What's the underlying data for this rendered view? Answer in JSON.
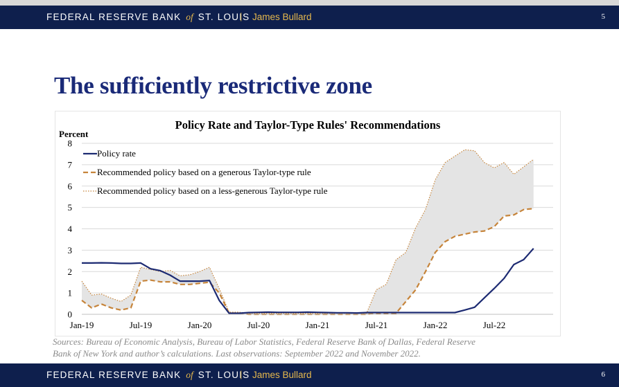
{
  "header": {
    "bank_part1": "FEDERAL RESERVE BANK",
    "bank_of": "of",
    "bank_part2": "ST. LOUIS",
    "separator": "|",
    "author": "James Bullard",
    "page_top": "5",
    "page_bottom": "6"
  },
  "slide": {
    "title": "The sufficiently restrictive zone"
  },
  "colors": {
    "banner": "#0e1f4d",
    "title": "#1a2a78",
    "policy_rate": "#1c2a72",
    "generous": "#c6843a",
    "less_generous": "#c6843a",
    "zone_fill": "#e4e4e4",
    "gold": "#e6b84d"
  },
  "chart_data": {
    "type": "line",
    "title": "Policy Rate and Taylor-Type Rules' Recommendations",
    "ylabel": "Percent",
    "xlabel": "",
    "ylim": [
      0,
      8
    ],
    "y_ticks": [
      "0",
      "1",
      "2",
      "3",
      "4",
      "5",
      "6",
      "7",
      "8"
    ],
    "x_ticks": [
      "Jan-19",
      "Jul-19",
      "Jan-20",
      "Jul-20",
      "Jan-21",
      "Jul-21",
      "Jan-22",
      "Jul-22"
    ],
    "x_start": "Jan-19",
    "x_end": "Nov-22",
    "legend_position": "top-left",
    "series": [
      {
        "name": "Policy rate",
        "style": "solid",
        "x": [
          0,
          1,
          2,
          3,
          4,
          5,
          6,
          7,
          8,
          9,
          10,
          11,
          12,
          13,
          14,
          15,
          16,
          17,
          18,
          19,
          20,
          21,
          22,
          23,
          24,
          25,
          26,
          27,
          28,
          29,
          30,
          31,
          32,
          33,
          34,
          35,
          36,
          37,
          38,
          39,
          40,
          41,
          42,
          43,
          44,
          45,
          46
        ],
        "values": [
          2.4,
          2.4,
          2.41,
          2.4,
          2.38,
          2.38,
          2.4,
          2.13,
          2.04,
          1.83,
          1.55,
          1.55,
          1.55,
          1.58,
          0.65,
          0.05,
          0.05,
          0.08,
          0.09,
          0.1,
          0.09,
          0.09,
          0.09,
          0.1,
          0.09,
          0.08,
          0.07,
          0.07,
          0.06,
          0.08,
          0.08,
          0.08,
          0.08,
          0.08,
          0.08,
          0.08,
          0.08,
          0.08,
          0.08,
          0.2,
          0.33,
          0.77,
          1.21,
          1.68,
          2.33,
          2.56,
          3.08
        ]
      },
      {
        "name": "Recommended policy based on a generous Taylor-type rule",
        "style": "dashed",
        "x": [
          0,
          1,
          2,
          3,
          4,
          5,
          6,
          7,
          8,
          9,
          10,
          11,
          12,
          13,
          14,
          15,
          16,
          17,
          18,
          19,
          20,
          21,
          22,
          23,
          24,
          25,
          26,
          27,
          28,
          29,
          30,
          31,
          32,
          33,
          34,
          35,
          36,
          37,
          38,
          39,
          40,
          41,
          42,
          43,
          44,
          45,
          46
        ],
        "values": [
          0.65,
          0.3,
          0.48,
          0.3,
          0.2,
          0.3,
          1.55,
          1.6,
          1.52,
          1.52,
          1.4,
          1.4,
          1.45,
          1.5,
          1.0,
          0.05,
          0.05,
          0.0,
          0.0,
          0.0,
          0.0,
          0.0,
          0.0,
          0.0,
          0.0,
          0.0,
          0.0,
          0.0,
          0.0,
          0.0,
          0.05,
          0.05,
          0.05,
          0.6,
          1.15,
          2.0,
          2.9,
          3.4,
          3.65,
          3.75,
          3.85,
          3.9,
          4.1,
          4.6,
          4.65,
          4.9,
          4.95
        ]
      },
      {
        "name": "Recommended policy based on a less-generous Taylor-type rule",
        "style": "dotted",
        "x": [
          0,
          1,
          2,
          3,
          4,
          5,
          6,
          7,
          8,
          9,
          10,
          11,
          12,
          13,
          14,
          15,
          16,
          17,
          18,
          19,
          20,
          21,
          22,
          23,
          24,
          25,
          26,
          27,
          28,
          29,
          30,
          31,
          32,
          33,
          34,
          35,
          36,
          37,
          38,
          39,
          40,
          41,
          42,
          43,
          44,
          45,
          46
        ],
        "values": [
          1.55,
          0.9,
          0.95,
          0.75,
          0.6,
          0.9,
          2.2,
          2.1,
          2.0,
          2.05,
          1.8,
          1.85,
          2.0,
          2.2,
          1.2,
          0.1,
          0.1,
          0.05,
          0.05,
          0.05,
          0.05,
          0.05,
          0.05,
          0.05,
          0.05,
          0.05,
          0.05,
          0.05,
          0.05,
          0.05,
          1.15,
          1.4,
          2.55,
          2.9,
          4.05,
          4.9,
          6.3,
          7.1,
          7.4,
          7.7,
          7.65,
          7.1,
          6.85,
          7.1,
          6.55,
          6.9,
          7.25
        ]
      }
    ]
  },
  "source": {
    "line1": "Sources: Bureau of Economic Analysis, Bureau of Labor Statistics, Federal Reserve Bank of Dallas, Federal Reserve",
    "line2": "Bank of New York and author’s calculations. Last observations: September 2022 and November 2022."
  }
}
